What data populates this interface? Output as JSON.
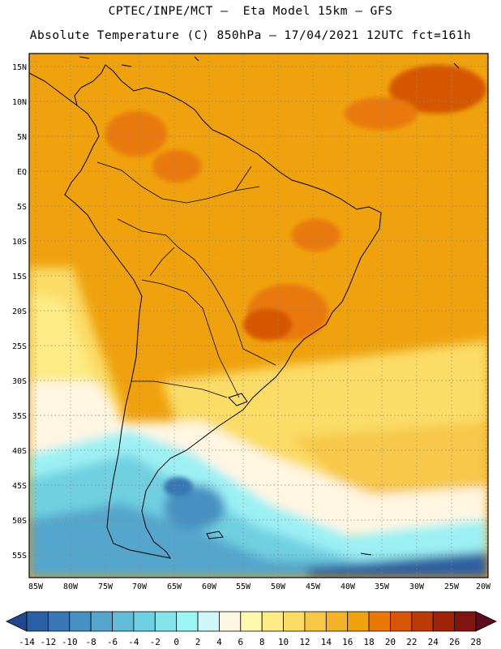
{
  "header": {
    "line1": "CPTEC/INPE/MCT –  Eta Model 15km – GFS",
    "line2": "Absolute Temperature (C) 850hPa – 17/04/2021 12UTC fct=161h"
  },
  "map": {
    "lat_labels": [
      "15N",
      "10N",
      "5N",
      "EQ",
      "5S",
      "10S",
      "15S",
      "20S",
      "25S",
      "30S",
      "35S",
      "40S",
      "45S",
      "50S",
      "55S"
    ],
    "lon_labels": [
      "85W",
      "80W",
      "75W",
      "70W",
      "65W",
      "60W",
      "55W",
      "50W",
      "45W",
      "40W",
      "35W",
      "30W",
      "25W",
      "20W"
    ]
  },
  "colorbar": {
    "labels": [
      "-14",
      "-12",
      "-10",
      "-8",
      "-6",
      "-4",
      "-2",
      "0",
      "2",
      "4",
      "6",
      "8",
      "10",
      "12",
      "14",
      "16",
      "18",
      "20",
      "22",
      "24",
      "26",
      "28"
    ],
    "colors": [
      "#21488f",
      "#2b5fa3",
      "#3877b5",
      "#4790c2",
      "#54a6cc",
      "#62bcd8",
      "#6fd0e1",
      "#84e4ea",
      "#9cf5f2",
      "#cff6f8",
      "#fff6e2",
      "#fff8ae",
      "#fdeb85",
      "#fbdc66",
      "#f7c848",
      "#f3b429",
      "#f0a20e",
      "#e97907",
      "#d65606",
      "#bc3b06",
      "#9f2308",
      "#801510",
      "#5d0a1a"
    ]
  },
  "legend_colors": {
    "very_cold": "#2f5f9f",
    "cold": "#54b4dc",
    "cool": "#9cf0f4",
    "mild": "#fff6e2",
    "warm": "#fbdc66",
    "hot": "#f0a20e",
    "very_hot": "#d65606"
  }
}
